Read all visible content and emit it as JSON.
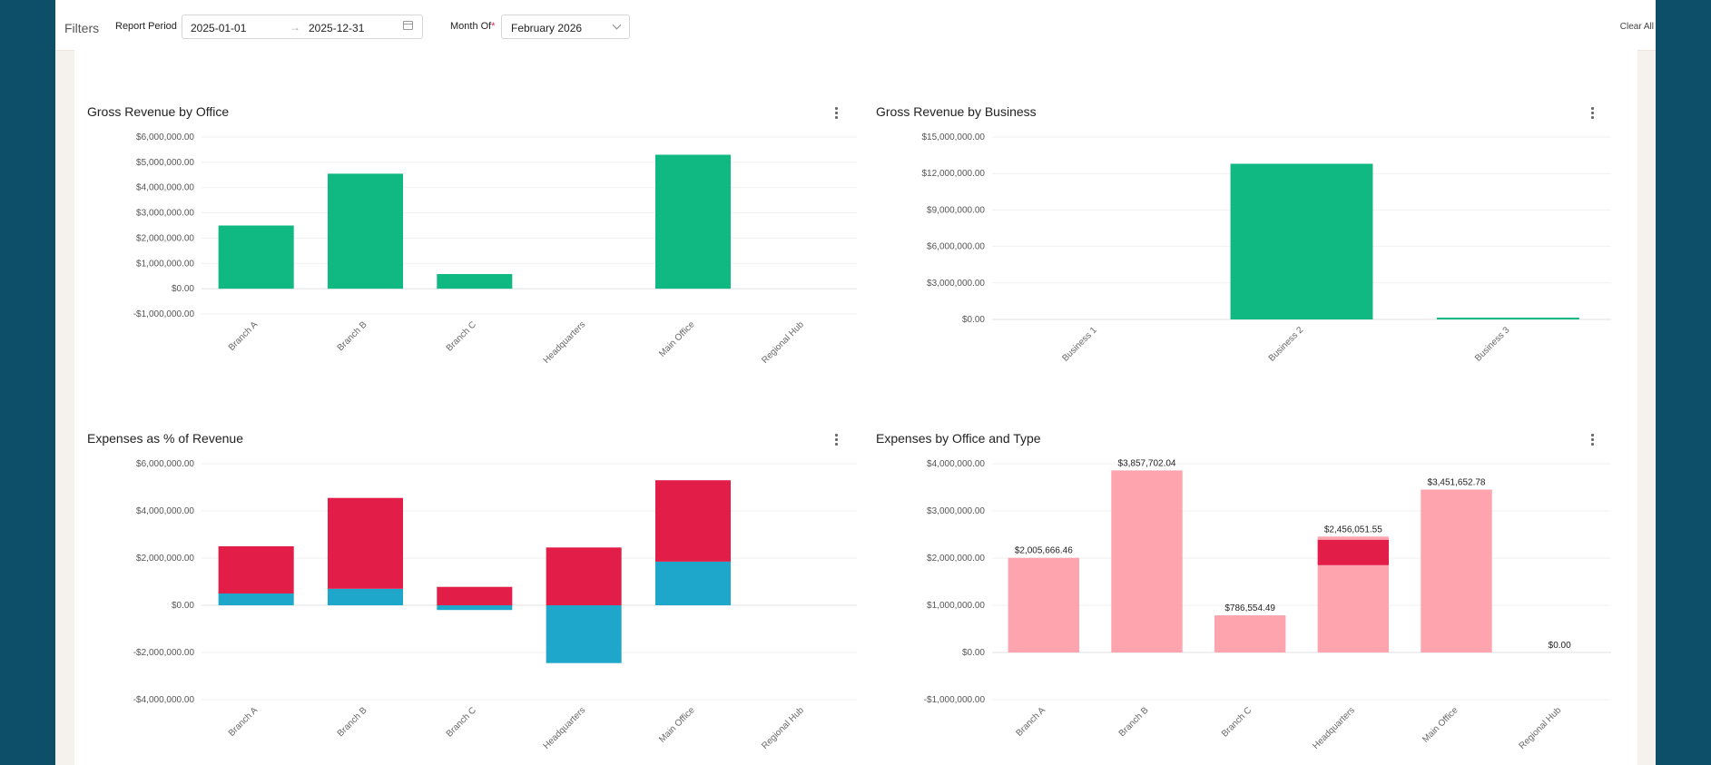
{
  "filters": {
    "title": "Filters",
    "report_period_label": "Report Period",
    "start_date": "2025-01-01",
    "end_date": "2025-12-31",
    "month_of_label": "Month Of",
    "required_marker": "*",
    "month_of_value": "February 2026",
    "clear_all": "Clear All"
  },
  "icons": {
    "calendar": "calendar-icon",
    "dropdown": "chevron-down-icon",
    "more": "kebab-menu-icon"
  },
  "colors": {
    "green": "#10b981",
    "red": "#e11d48",
    "blue": "#1fa7cb",
    "pink": "#fda4af"
  },
  "chart_data": [
    {
      "id": "office",
      "type": "bar",
      "title": "Gross Revenue by Office",
      "categories": [
        "Branch A",
        "Branch B",
        "Branch C",
        "Headquarters",
        "Main Office",
        "Regional Hub"
      ],
      "series": [
        {
          "color": "#10b981",
          "values": [
            2500000,
            4550000,
            580000,
            0,
            5300000,
            0
          ]
        }
      ],
      "ylim": [
        -1000000,
        6000000
      ],
      "yticks": [
        6000000,
        5000000,
        4000000,
        3000000,
        2000000,
        1000000,
        0,
        -1000000
      ],
      "ytick_labels": [
        "$6,000,000.00",
        "$5,000,000.00",
        "$4,000,000.00",
        "$3,000,000.00",
        "$2,000,000.00",
        "$1,000,000.00",
        "$0.00",
        "-$1,000,000.00"
      ],
      "grid": true
    },
    {
      "id": "business",
      "type": "bar",
      "title": "Gross Revenue by Business",
      "categories": [
        "Business 1",
        "Business 2",
        "Business 3"
      ],
      "series": [
        {
          "color": "#10b981",
          "values": [
            0,
            12800000,
            150000
          ]
        }
      ],
      "ylim": [
        0,
        15000000
      ],
      "yticks": [
        15000000,
        12000000,
        9000000,
        6000000,
        3000000,
        0
      ],
      "ytick_labels": [
        "$15,000,000.00",
        "$12,000,000.00",
        "$9,000,000.00",
        "$6,000,000.00",
        "$3,000,000.00",
        "$0.00"
      ],
      "grid": true
    },
    {
      "id": "expenses_pct",
      "type": "bar",
      "stacked": true,
      "title": "Expenses as % of Revenue",
      "categories": [
        "Branch A",
        "Branch B",
        "Branch C",
        "Headquarters",
        "Main Office",
        "Regional Hub"
      ],
      "series": [
        {
          "color": "#1fa7cb",
          "values": [
            500000,
            700000,
            -200000,
            -2450000,
            1850000,
            0
          ]
        },
        {
          "color": "#e11d48",
          "values": [
            2000000,
            3850000,
            780000,
            2450000,
            3450000,
            0
          ]
        }
      ],
      "ylim": [
        -4000000,
        6000000
      ],
      "yticks": [
        6000000,
        4000000,
        2000000,
        0,
        -2000000,
        -4000000
      ],
      "ytick_labels": [
        "$6,000,000.00",
        "$4,000,000.00",
        "$2,000,000.00",
        "$0.00",
        "-$2,000,000.00",
        "-$4,000,000.00"
      ],
      "grid": true
    },
    {
      "id": "expenses_type",
      "type": "bar",
      "stacked": true,
      "title": "Expenses by Office and Type",
      "categories": [
        "Branch A",
        "Branch B",
        "Branch C",
        "Headquarters",
        "Main Office",
        "Regional Hub"
      ],
      "series": [
        {
          "color": "#fda4af",
          "values": [
            2005666.46,
            3857702.04,
            786554.49,
            1850000,
            3451652.78,
            0
          ]
        },
        {
          "color": "#e11d48",
          "values": [
            0,
            0,
            0,
            540000,
            0,
            0
          ]
        },
        {
          "color": "#fda4af",
          "values": [
            0,
            0,
            0,
            66051.55,
            0,
            0
          ]
        }
      ],
      "totals": [
        2005666.46,
        3857702.04,
        786554.49,
        2456051.55,
        3451652.78,
        0
      ],
      "total_labels": [
        "$2,005,666.46",
        "$3,857,702.04",
        "$786,554.49",
        "$2,456,051.55",
        "$3,451,652.78",
        "$0.00"
      ],
      "ylim": [
        -1000000,
        4000000
      ],
      "yticks": [
        4000000,
        3000000,
        2000000,
        1000000,
        0,
        -1000000
      ],
      "ytick_labels": [
        "$4,000,000.00",
        "$3,000,000.00",
        "$2,000,000.00",
        "$1,000,000.00",
        "$0.00",
        "-$1,000,000.00"
      ],
      "grid": true
    }
  ]
}
